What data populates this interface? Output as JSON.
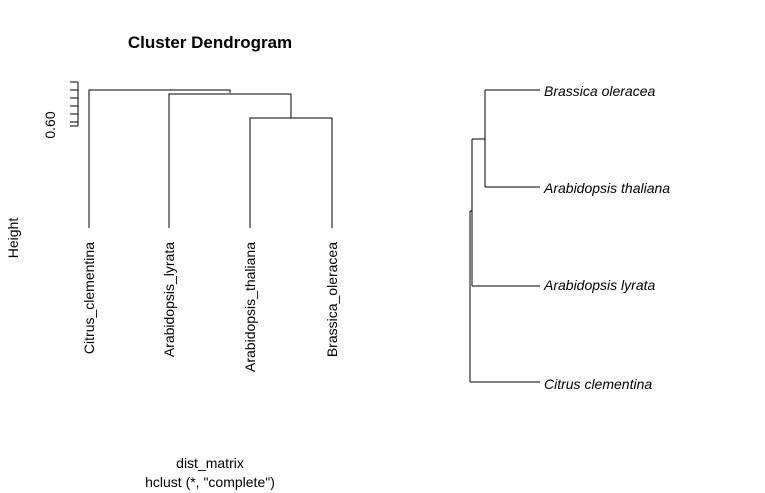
{
  "left_plot": {
    "title": "Cluster Dendrogram",
    "ylabel": "Height",
    "ytick_label": "0.60",
    "xlabel": "dist_matrix",
    "method_label": "hclust (*, \"complete\")",
    "leaves": [
      "Citrus_clementina",
      "Arabidopsis_lyrata",
      "Arabidopsis_thaliana",
      "Brassica_oleracea"
    ]
  },
  "right_plot": {
    "tips": [
      "Brassica oleracea",
      "Arabidopsis thaliana",
      "Arabidopsis lyrata",
      "Citrus clementina"
    ]
  }
}
